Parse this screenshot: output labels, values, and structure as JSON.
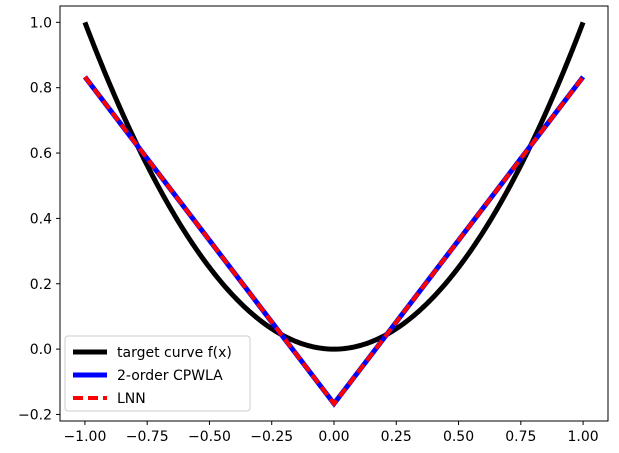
{
  "chart_data": {
    "type": "line",
    "title": "",
    "xlabel": "",
    "ylabel": "",
    "xlim": [
      -1.1,
      1.1
    ],
    "ylim": [
      -0.22,
      1.05
    ],
    "xticks": [
      -1.0,
      -0.75,
      -0.5,
      -0.25,
      0.0,
      0.25,
      0.5,
      0.75,
      1.0
    ],
    "xtick_labels": [
      "−1.00",
      "−0.75",
      "−0.50",
      "−0.25",
      "0.00",
      "0.25",
      "0.50",
      "0.75",
      "1.00"
    ],
    "yticks": [
      -0.2,
      0.0,
      0.2,
      0.4,
      0.6,
      0.8,
      1.0
    ],
    "ytick_labels": [
      "−0.2",
      "0.0",
      "0.2",
      "0.4",
      "0.6",
      "0.8",
      "1.0"
    ],
    "grid": false,
    "legend_position": "lower-left",
    "series": [
      {
        "name": "target curve f(x)",
        "color": "#000000",
        "style": "solid",
        "function": "x^2",
        "x": [
          -1.0,
          -0.75,
          -0.5,
          -0.25,
          0.0,
          0.25,
          0.5,
          0.75,
          1.0
        ],
        "y": [
          1.0,
          0.5625,
          0.25,
          0.0625,
          0.0,
          0.0625,
          0.25,
          0.5625,
          1.0
        ]
      },
      {
        "name": "2-order CPWLA",
        "color": "#0000ff",
        "style": "solid",
        "x": [
          -1.0,
          0.0,
          1.0
        ],
        "y": [
          0.833,
          -0.167,
          0.833
        ]
      },
      {
        "name": "LNN",
        "color": "#ff0000",
        "style": "dashed",
        "x": [
          -1.0,
          0.0,
          1.0
        ],
        "y": [
          0.833,
          -0.167,
          0.833
        ]
      }
    ]
  }
}
